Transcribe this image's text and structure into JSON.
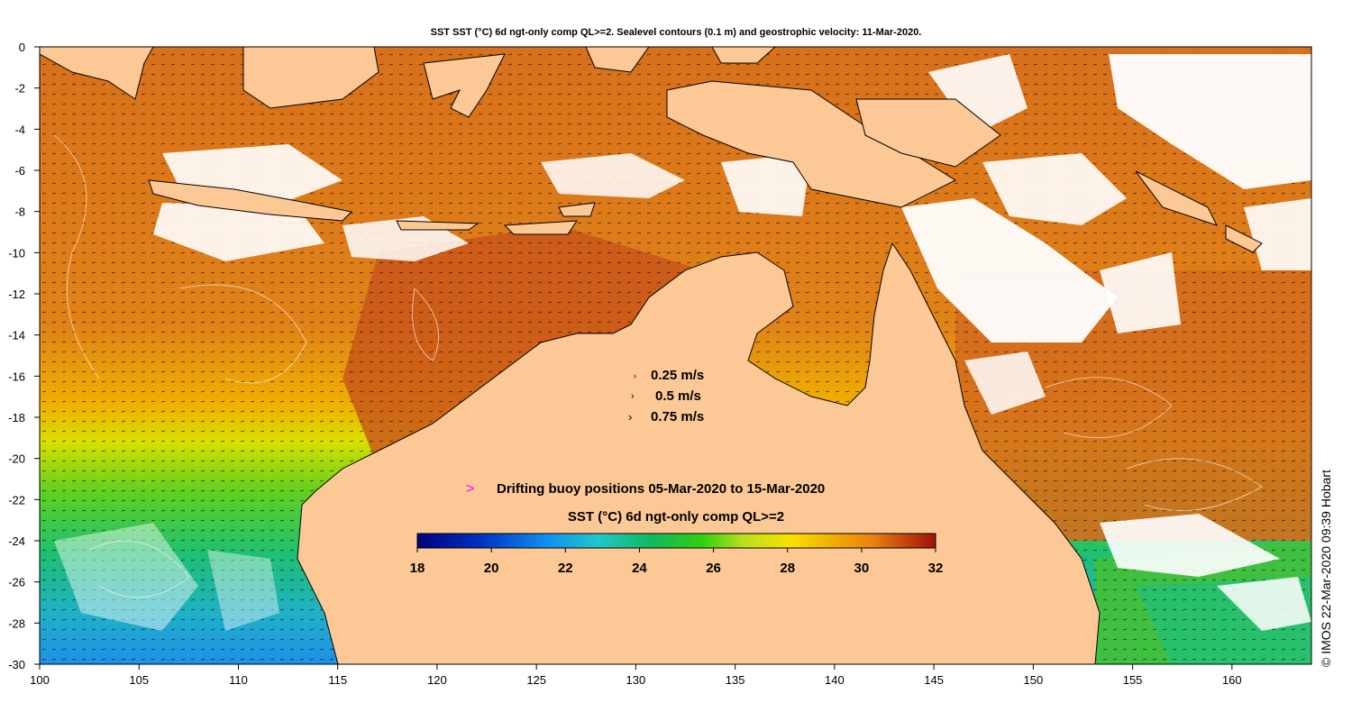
{
  "title": "SST SST (°C) 6d ngt-only comp QL>=2. Sealevel contours (0.1 m) and geostrophic velocity: 11-Mar-2020.",
  "credit": "© IMOS 22-Mar-2020 09:39 Hobart",
  "axes": {
    "lon_ticks": [
      "100",
      "105",
      "110",
      "115",
      "120",
      "125",
      "130",
      "135",
      "140",
      "145",
      "150",
      "155",
      "160"
    ],
    "lat_ticks": [
      "0",
      "-2",
      "-4",
      "-6",
      "-8",
      "-10",
      "-12",
      "-14",
      "-16",
      "-18",
      "-20",
      "-22",
      "-24",
      "-26",
      "-28",
      "-30"
    ],
    "lon_range": [
      100,
      164
    ],
    "lat_range": [
      -30,
      0
    ]
  },
  "velocity_key": [
    "0.25 m/s",
    "0.5 m/s",
    "0.75 m/s"
  ],
  "buoy_legend": {
    "symbol": ">",
    "symbol_color": "#ff00ff",
    "text": "Drifting buoy positions 05-Mar-2020 to 15-Mar-2020"
  },
  "colorbar": {
    "title": "SST (°C) 6d ngt-only comp QL>=2",
    "ticks": [
      "18",
      "20",
      "22",
      "24",
      "26",
      "28",
      "30",
      "32"
    ],
    "range": [
      18,
      32
    ]
  },
  "colors": {
    "land": "#fcc896",
    "no_data": "#ffffff",
    "sst_warm": "#d9701e",
    "sst_hot": "#c84a10",
    "sst_mid": "#f0a000",
    "sst_cool": "#30c040",
    "sst_cold": "#30a8e8"
  }
}
